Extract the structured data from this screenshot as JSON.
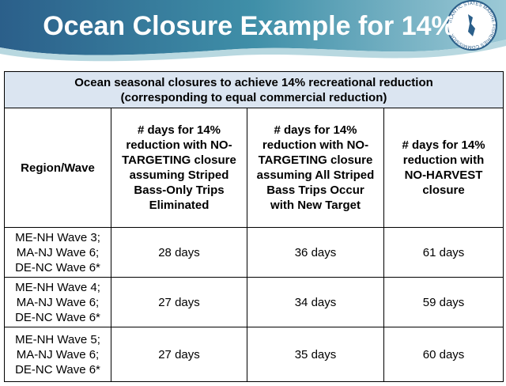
{
  "header": {
    "title": "Ocean Closure Example for 14%",
    "logo_text": "ATLANTIC STATES MARINE FISHERIES COMMISSION"
  },
  "table": {
    "caption": "Ocean seasonal closures to achieve 14% recreational reduction (corresponding to equal commercial reduction)",
    "columns": [
      "Region/Wave",
      "# days for 14% reduction with NO-TARGETING closure assuming Striped Bass-Only Trips Eliminated",
      "# days for 14% reduction with NO-TARGETING closure assuming All Striped Bass Trips Occur with New Target",
      "# days for 14% reduction with NO-HARVEST closure"
    ],
    "rows": [
      [
        "ME-NH Wave 3; MA-NJ Wave 6; DE-NC Wave 6*",
        "28 days",
        "36 days",
        "61 days"
      ],
      [
        "ME-NH Wave 4; MA-NJ Wave 6; DE-NC Wave 6*",
        "27 days",
        "34 days",
        "59 days"
      ],
      [
        "ME-NH Wave 5; MA-NJ Wave 6; DE-NC Wave 6*",
        "27 days",
        "35 days",
        "60 days"
      ]
    ]
  }
}
